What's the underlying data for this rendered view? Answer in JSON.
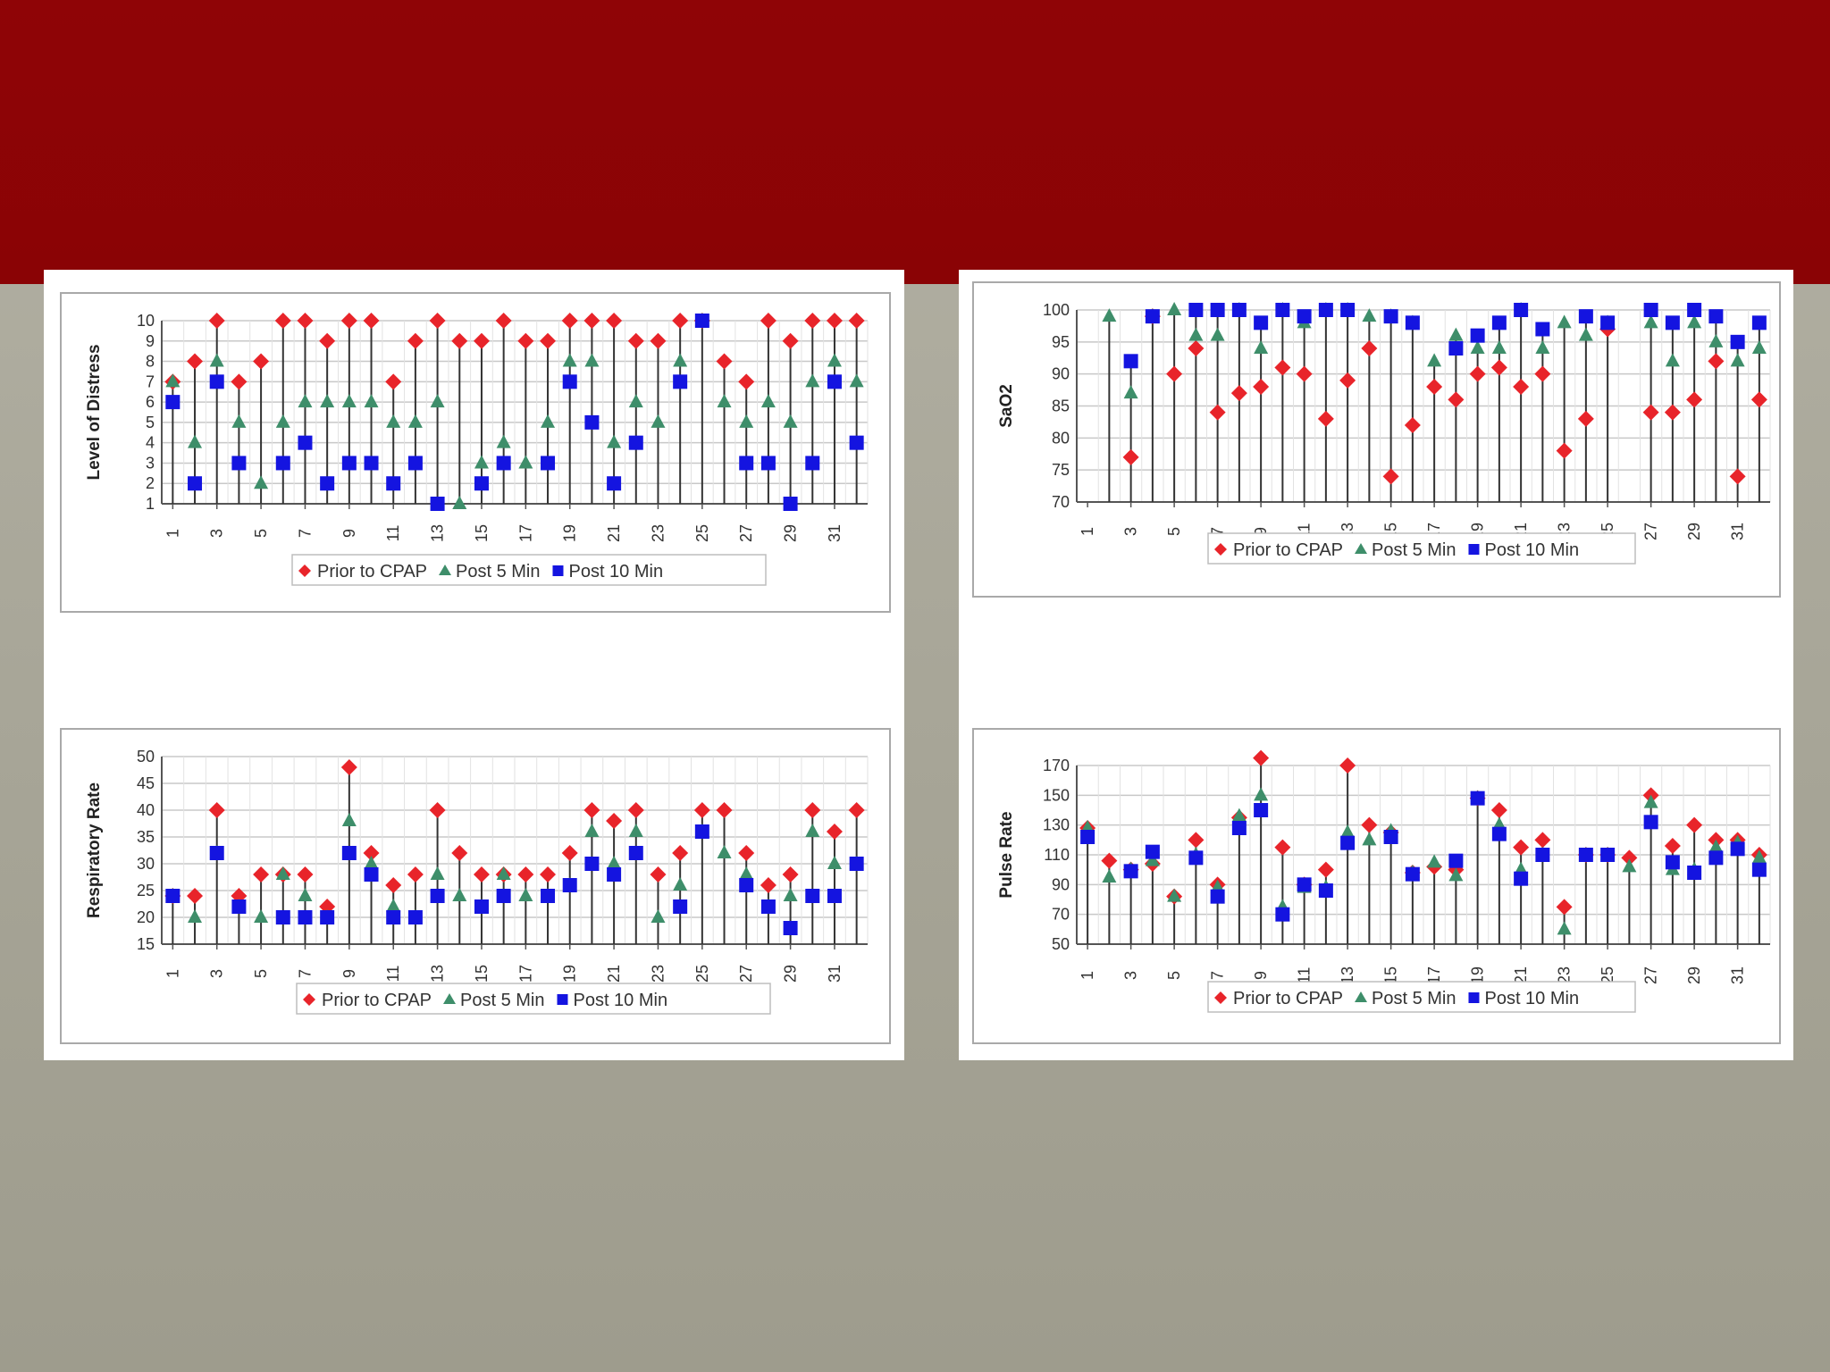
{
  "colors": {
    "header": "#8f0406",
    "background": "#a9a79a",
    "prior": "#e8242a",
    "post5": "#3e8e6a",
    "post10": "#1414e0",
    "stem": "#333333",
    "grid": "#c8c8c8"
  },
  "legend": {
    "prior": "Prior to CPAP",
    "post5": "Post 5 Min",
    "post10": "Post 10 Min"
  },
  "x_tick_labels": [
    "1",
    "3",
    "5",
    "7",
    "9",
    "11",
    "13",
    "15",
    "17",
    "19",
    "21",
    "23",
    "25",
    "27",
    "29",
    "31"
  ],
  "chart_data": [
    {
      "type": "scatter",
      "ylabel": "Level of Distress",
      "ylim": [
        1,
        10
      ],
      "yticks": [
        "1",
        "2",
        "3",
        "4",
        "5",
        "6",
        "7",
        "8",
        "9",
        "10"
      ],
      "x": [
        1,
        2,
        3,
        4,
        5,
        6,
        7,
        8,
        9,
        10,
        11,
        12,
        13,
        14,
        15,
        16,
        17,
        18,
        19,
        20,
        21,
        22,
        23,
        24,
        25,
        26,
        27,
        28,
        29,
        30,
        31,
        32
      ],
      "series": [
        {
          "name": "Prior to CPAP",
          "values": [
            7,
            8,
            10,
            7,
            8,
            10,
            10,
            9,
            10,
            10,
            7,
            9,
            10,
            9,
            9,
            10,
            9,
            9,
            10,
            10,
            10,
            9,
            9,
            10,
            10,
            8,
            7,
            10,
            9,
            10,
            10,
            10
          ]
        },
        {
          "name": "Post 5 Min",
          "values": [
            7,
            4,
            8,
            5,
            2,
            5,
            6,
            6,
            6,
            6,
            5,
            5,
            6,
            1,
            3,
            4,
            3,
            5,
            8,
            8,
            4,
            6,
            5,
            8,
            10,
            6,
            5,
            6,
            5,
            7,
            8,
            7
          ]
        },
        {
          "name": "Post 10 Min",
          "values": [
            6,
            2,
            7,
            3,
            null,
            3,
            4,
            2,
            3,
            3,
            2,
            3,
            1,
            null,
            2,
            3,
            null,
            3,
            7,
            5,
            2,
            4,
            null,
            7,
            10,
            null,
            3,
            3,
            1,
            3,
            7,
            4
          ]
        }
      ]
    },
    {
      "type": "scatter",
      "ylabel": "SaO2",
      "ylim": [
        70,
        100
      ],
      "yticks": [
        "70",
        "75",
        "80",
        "85",
        "90",
        "95",
        "100"
      ],
      "x": [
        1,
        2,
        3,
        4,
        5,
        6,
        7,
        8,
        9,
        10,
        11,
        12,
        13,
        14,
        15,
        16,
        17,
        18,
        19,
        20,
        21,
        22,
        23,
        24,
        25,
        26,
        27,
        28,
        29,
        30,
        31,
        32
      ],
      "series": [
        {
          "name": "Prior to CPAP",
          "values": [
            null,
            null,
            77,
            99,
            90,
            94,
            84,
            87,
            88,
            91,
            90,
            83,
            89,
            94,
            74,
            82,
            88,
            86,
            90,
            91,
            88,
            90,
            78,
            83,
            97,
            null,
            84,
            84,
            86,
            92,
            74,
            86
          ]
        },
        {
          "name": "Post 5 Min",
          "values": [
            null,
            99,
            87,
            99,
            100,
            96,
            96,
            100,
            94,
            100,
            98,
            100,
            100,
            99,
            99,
            98,
            92,
            96,
            94,
            94,
            100,
            94,
            98,
            96,
            98,
            null,
            98,
            92,
            98,
            95,
            92,
            94
          ]
        },
        {
          "name": "Post 10 Min",
          "values": [
            null,
            null,
            92,
            99,
            null,
            100,
            100,
            100,
            98,
            100,
            99,
            100,
            100,
            null,
            99,
            98,
            null,
            94,
            96,
            98,
            100,
            97,
            null,
            99,
            98,
            null,
            100,
            98,
            100,
            99,
            95,
            98
          ]
        }
      ]
    },
    {
      "type": "scatter",
      "ylabel": "Respiratory Rate",
      "ylim": [
        15,
        50
      ],
      "yticks": [
        "15",
        "20",
        "25",
        "30",
        "35",
        "40",
        "45",
        "50"
      ],
      "x": [
        1,
        2,
        3,
        4,
        5,
        6,
        7,
        8,
        9,
        10,
        11,
        12,
        13,
        14,
        15,
        16,
        17,
        18,
        19,
        20,
        21,
        22,
        23,
        24,
        25,
        26,
        27,
        28,
        29,
        30,
        31,
        32
      ],
      "series": [
        {
          "name": "Prior to CPAP",
          "values": [
            24,
            24,
            40,
            24,
            28,
            28,
            28,
            22,
            48,
            32,
            26,
            28,
            40,
            32,
            28,
            28,
            28,
            28,
            32,
            40,
            38,
            40,
            28,
            32,
            40,
            40,
            32,
            26,
            28,
            40,
            36,
            40
          ]
        },
        {
          "name": "Post 5 Min",
          "values": [
            24,
            20,
            32,
            22,
            20,
            28,
            24,
            20,
            38,
            30,
            22,
            20,
            28,
            24,
            22,
            28,
            24,
            24,
            26,
            36,
            30,
            36,
            20,
            26,
            36,
            32,
            28,
            22,
            24,
            36,
            30,
            30
          ]
        },
        {
          "name": "Post 10 Min",
          "values": [
            24,
            null,
            32,
            22,
            null,
            20,
            20,
            20,
            32,
            28,
            20,
            20,
            24,
            null,
            22,
            24,
            null,
            24,
            26,
            30,
            28,
            32,
            null,
            22,
            36,
            null,
            26,
            22,
            18,
            24,
            24,
            30
          ]
        }
      ]
    },
    {
      "type": "scatter",
      "ylabel": "Pulse Rate",
      "ylim": [
        50,
        170
      ],
      "yticks": [
        "50",
        "70",
        "90",
        "110",
        "130",
        "150",
        "170"
      ],
      "x": [
        1,
        2,
        3,
        4,
        5,
        6,
        7,
        8,
        9,
        10,
        11,
        12,
        13,
        14,
        15,
        16,
        17,
        18,
        19,
        20,
        21,
        22,
        23,
        24,
        25,
        26,
        27,
        28,
        29,
        30,
        31,
        32
      ],
      "series": [
        {
          "name": "Prior to CPAP",
          "values": [
            128,
            106,
            100,
            104,
            82,
            120,
            90,
            135,
            175,
            115,
            90,
            100,
            170,
            130,
            125,
            98,
            102,
            100,
            148,
            140,
            115,
            120,
            75,
            110,
            110,
            108,
            150,
            116,
            130,
            120,
            120,
            110
          ]
        },
        {
          "name": "Post 5 Min",
          "values": [
            128,
            95,
            100,
            106,
            82,
            110,
            88,
            136,
            150,
            75,
            88,
            88,
            125,
            120,
            126,
            98,
            105,
            96,
            148,
            130,
            100,
            110,
            60,
            110,
            110,
            102,
            145,
            100,
            100,
            115,
            118,
            108
          ]
        },
        {
          "name": "Post 10 Min",
          "values": [
            122,
            null,
            99,
            112,
            null,
            108,
            82,
            128,
            140,
            70,
            90,
            86,
            118,
            null,
            122,
            97,
            null,
            106,
            148,
            124,
            94,
            110,
            null,
            110,
            110,
            null,
            132,
            105,
            98,
            108,
            114,
            100
          ]
        }
      ]
    }
  ]
}
